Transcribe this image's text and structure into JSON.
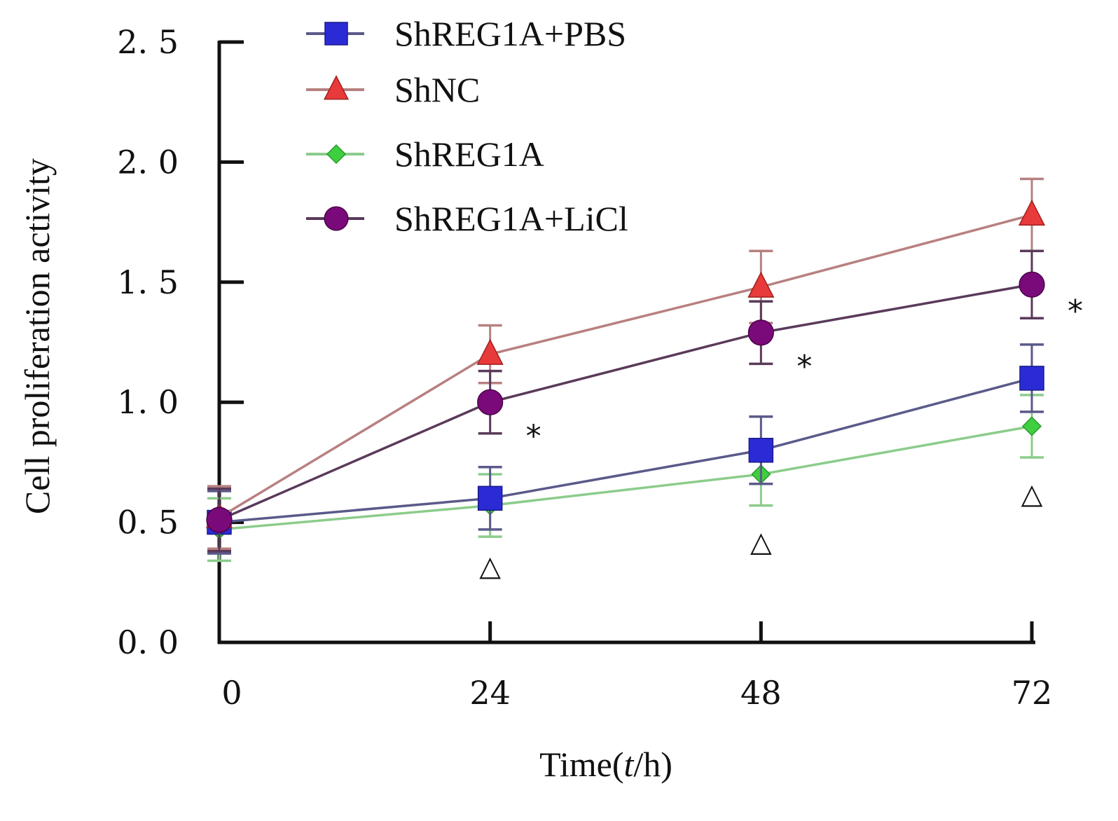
{
  "chart_data": {
    "type": "line",
    "title": "",
    "xlabel": "Time(t/h)",
    "xlabel_parts": {
      "prefix": "Time(",
      "italic": "t",
      "suffix": "/h)"
    },
    "ylabel": "Cell proliferation activity",
    "x": [
      0,
      24,
      48,
      72
    ],
    "xticks": [
      "0",
      "24",
      "48",
      "72"
    ],
    "yticks": [
      "0. 0",
      "0. 5",
      "1. 0",
      "1. 5",
      "2. 0",
      "2. 5"
    ],
    "ytick_values": [
      0,
      0.5,
      1.0,
      1.5,
      2.0,
      2.5
    ],
    "xlim": [
      0,
      72
    ],
    "ylim": [
      0,
      2.5
    ],
    "grid": false,
    "legend_position": "top-center",
    "series": [
      {
        "name": "ShREG1A+PBS",
        "marker": "square",
        "color": "#2b2bd6",
        "line_color": "#5a5a8a",
        "values": [
          0.5,
          0.6,
          0.8,
          1.1
        ],
        "errors": [
          0.13,
          0.13,
          0.14,
          0.14
        ]
      },
      {
        "name": "ShNC",
        "marker": "triangle",
        "color": "#e83a3a",
        "line_color": "#b88080",
        "values": [
          0.52,
          1.2,
          1.48,
          1.78
        ],
        "errors": [
          0.13,
          0.12,
          0.15,
          0.15
        ]
      },
      {
        "name": "ShREG1A",
        "marker": "diamond",
        "color": "#3ecf3e",
        "line_color": "#8ccc8c",
        "values": [
          0.47,
          0.57,
          0.7,
          0.9
        ],
        "errors": [
          0.13,
          0.13,
          0.13,
          0.13
        ]
      },
      {
        "name": "ShREG1A+LiCl",
        "marker": "circle",
        "color": "#7a0a7a",
        "line_color": "#5a3a5a",
        "values": [
          0.51,
          1.0,
          1.29,
          1.49
        ],
        "errors": [
          0.13,
          0.13,
          0.13,
          0.14
        ]
      }
    ],
    "annotations": [
      {
        "text": "*",
        "x": 24,
        "y": 0.88,
        "type": "asterisk"
      },
      {
        "text": "*",
        "x": 48,
        "y": 1.17,
        "type": "asterisk"
      },
      {
        "text": "*",
        "x": 72,
        "y": 1.4,
        "type": "asterisk"
      },
      {
        "text": "△",
        "x": 24,
        "y": 0.32,
        "type": "triangle-open"
      },
      {
        "text": "△",
        "x": 48,
        "y": 0.42,
        "type": "triangle-open"
      },
      {
        "text": "△",
        "x": 72,
        "y": 0.62,
        "type": "triangle-open"
      }
    ]
  }
}
